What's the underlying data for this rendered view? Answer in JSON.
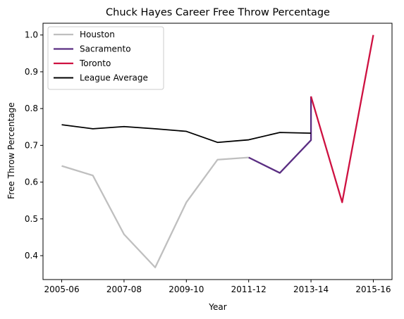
{
  "chart_data": {
    "type": "line",
    "title": "Chuck Hayes Career Free Throw Percentage",
    "xlabel": "Year",
    "ylabel": "Free Throw Percentage",
    "x_tick_labels": [
      "2005-06",
      "2007-08",
      "2009-10",
      "2011-12",
      "2013-14",
      "2015-16"
    ],
    "x_ticks": [
      0,
      2,
      4,
      6,
      8,
      10
    ],
    "xlim": [
      -0.6,
      10.6
    ],
    "y_ticks": [
      0.4,
      0.5,
      0.6,
      0.7,
      0.8,
      0.9,
      1.0
    ],
    "y_tick_labels": [
      "0.4",
      "0.5",
      "0.6",
      "0.7",
      "0.8",
      "0.9",
      "1.0"
    ],
    "ylim": [
      0.335,
      1.032
    ],
    "grid": false,
    "legend_position": "top-left",
    "series": [
      {
        "name": "Houston",
        "color": "#bfbfbf",
        "points": [
          [
            0,
            0.644
          ],
          [
            1,
            0.618
          ],
          [
            2,
            0.458
          ],
          [
            3,
            0.368
          ],
          [
            4,
            0.545
          ],
          [
            5,
            0.661
          ],
          [
            6,
            0.667
          ]
        ]
      },
      {
        "name": "Sacramento",
        "color": "#5a2d82",
        "points": [
          [
            6,
            0.667
          ],
          [
            7,
            0.625
          ],
          [
            8,
            0.714
          ],
          [
            8,
            0.833
          ]
        ]
      },
      {
        "name": "Toronto",
        "color": "#ce1141",
        "points": [
          [
            8,
            0.833
          ],
          [
            9,
            0.545
          ],
          [
            10,
            1.0
          ]
        ]
      },
      {
        "name": "League Average",
        "color": "#000000",
        "points": [
          [
            0,
            0.756
          ],
          [
            1,
            0.745
          ],
          [
            2,
            0.751
          ],
          [
            3,
            0.745
          ],
          [
            4,
            0.738
          ],
          [
            5,
            0.708
          ],
          [
            6,
            0.715
          ],
          [
            7,
            0.735
          ],
          [
            8,
            0.733
          ]
        ]
      }
    ]
  }
}
